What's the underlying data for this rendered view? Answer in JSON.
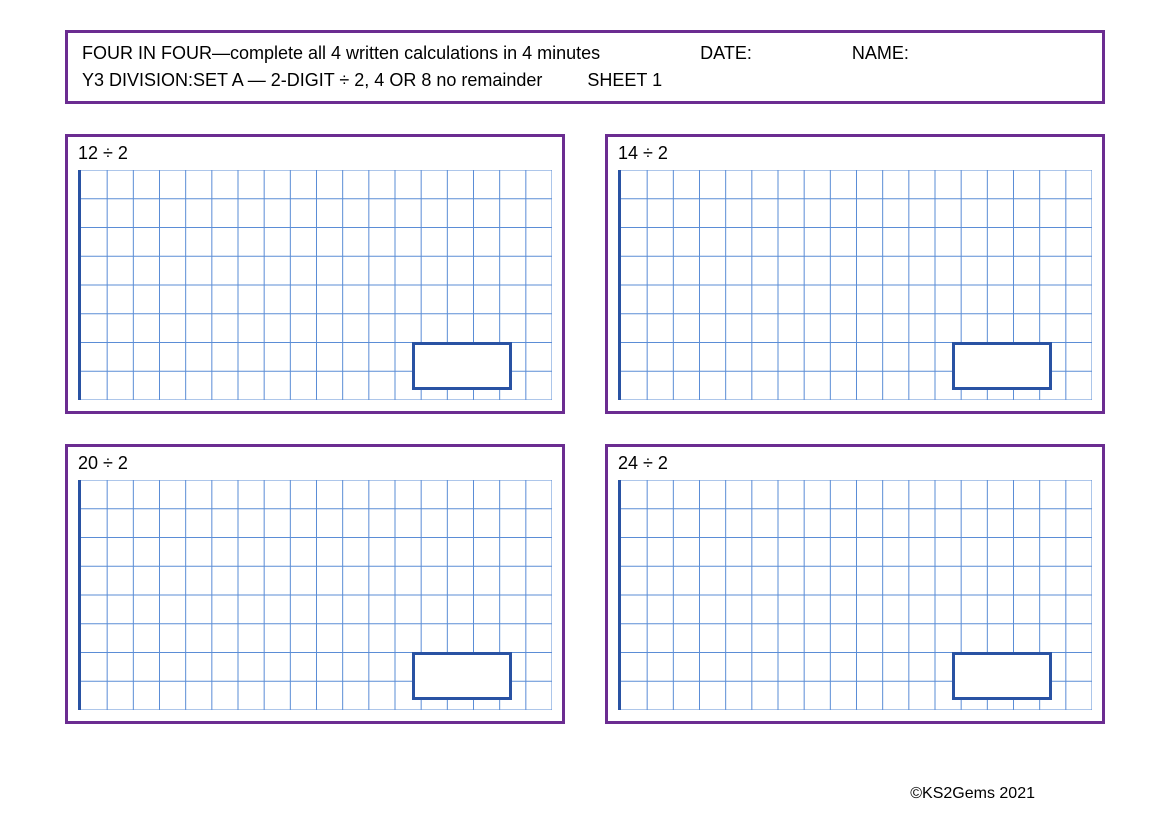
{
  "header": {
    "title": "FOUR IN FOUR—complete all 4 written calculations in 4 minutes",
    "date_label": "DATE:",
    "name_label": "NAME:",
    "subtitle": "Y3 DIVISION:SET A — 2-DIGIT ÷  2, 4 OR 8  no remainder",
    "sheet_label": "SHEET 1"
  },
  "problems": [
    {
      "label": "12 ÷ 2"
    },
    {
      "label": "14 ÷  2"
    },
    {
      "label": "20 ÷  2"
    },
    {
      "label": "24 ÷ 2"
    }
  ],
  "grid": {
    "columns": 18,
    "rows": 8,
    "line_color": "#5b8dd6",
    "left_border_color": "#2952a3",
    "answer_box_border_color": "#2952a3",
    "answer_box_bg": "#ffffff"
  },
  "colors": {
    "box_border": "#6b2c91",
    "background": "#ffffff",
    "text": "#000000"
  },
  "footer": {
    "copyright": "©KS2Gems 2021"
  }
}
